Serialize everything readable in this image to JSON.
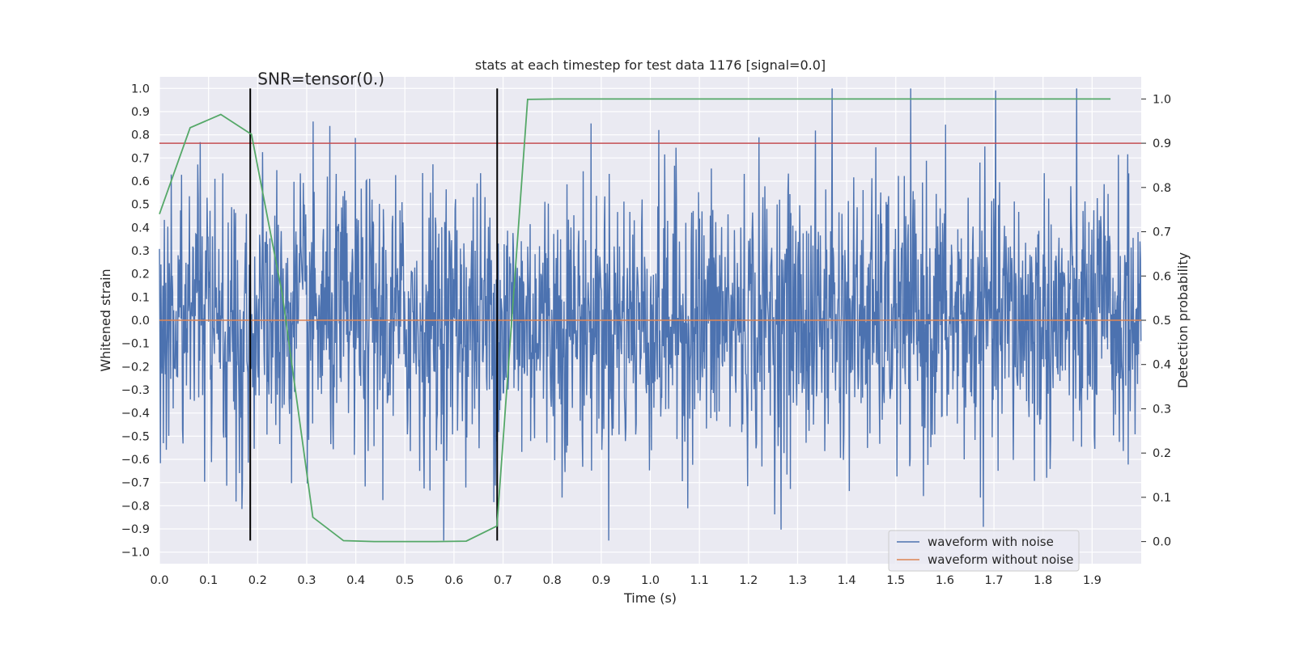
{
  "chart_data": {
    "type": "line",
    "title": "stats at each timestep for test data 1176 [signal=0.0]",
    "xlabel": "Time (s)",
    "ylabel": "Whitened strain",
    "y2label": "Detection probability",
    "xlim": [
      0.0,
      2.0
    ],
    "ylim": [
      -1.05,
      1.05
    ],
    "y2lim": [
      -0.05,
      1.05
    ],
    "xticks": [
      0.0,
      0.1,
      0.2,
      0.3,
      0.4,
      0.5,
      0.6,
      0.7,
      0.8,
      0.9,
      1.0,
      1.1,
      1.2,
      1.3,
      1.4,
      1.5,
      1.6,
      1.7,
      1.8,
      1.9
    ],
    "xtick_labels": [
      "0.0",
      "0.1",
      "0.2",
      "0.3",
      "0.4",
      "0.5",
      "0.6",
      "0.7",
      "0.8",
      "0.9",
      "1.0",
      "1.1",
      "1.2",
      "1.3",
      "1.4",
      "1.5",
      "1.6",
      "1.7",
      "1.8",
      "1.9"
    ],
    "yticks": [
      1.0,
      0.9,
      0.8,
      0.7,
      0.6,
      0.5,
      0.4,
      0.3,
      0.2,
      0.1,
      0.0,
      -0.1,
      -0.2,
      -0.3,
      -0.4,
      -0.5,
      -0.6,
      -0.7,
      -0.8,
      -0.9,
      -1.0
    ],
    "ytick_labels": [
      "1.0",
      "0.9",
      "0.8",
      "0.7",
      "0.6",
      "0.5",
      "0.4",
      "0.3",
      "0.2",
      "0.1",
      "0.0",
      "−0.1",
      "−0.2",
      "−0.3",
      "−0.4",
      "−0.5",
      "−0.6",
      "−0.7",
      "−0.8",
      "−0.9",
      "−1.0"
    ],
    "y2ticks": [
      1.0,
      0.9,
      0.8,
      0.7,
      0.6,
      0.5,
      0.4,
      0.3,
      0.2,
      0.1,
      0.0
    ],
    "y2tick_labels": [
      "1.0",
      "0.9",
      "0.8",
      "0.7",
      "0.6",
      "0.5",
      "0.4",
      "0.3",
      "0.2",
      "0.1",
      "0.0"
    ],
    "grid": true,
    "legend_position": "bottom-right",
    "series": [
      {
        "name": "waveform with noise",
        "axis": "left",
        "color": "#4c72b0",
        "noise": {
          "samples": 2000,
          "t_start": 0.0,
          "t_end": 1.9995,
          "amplitude_std": 0.3,
          "max": 1.0,
          "min": -0.95
        }
      },
      {
        "name": "waveform without noise",
        "axis": "left",
        "color": "#dd8452",
        "constant": 0.0
      },
      {
        "name": "detection probability",
        "axis": "right",
        "color": "#55a868",
        "x": [
          0.0,
          0.0625,
          0.125,
          0.1875,
          0.25,
          0.3125,
          0.375,
          0.4375,
          0.5,
          0.5625,
          0.625,
          0.6875,
          0.75,
          0.8125,
          0.875,
          0.9375,
          1.0,
          1.25,
          1.5,
          1.75,
          1.9375
        ],
        "values": [
          0.74,
          0.935,
          0.965,
          0.92,
          0.56,
          0.055,
          0.002,
          0.0,
          0.0,
          0.0,
          0.001,
          0.035,
          0.999,
          1.0,
          1.0,
          1.0,
          1.0,
          1.0,
          1.0,
          1.0,
          1.0
        ]
      }
    ],
    "threshold": {
      "axis": "right",
      "value": 0.9,
      "color": "#c44e52"
    },
    "vlines": [
      {
        "x": 0.185,
        "y_from": -0.95,
        "y_to": 1.0,
        "color": "#000000"
      },
      {
        "x": 0.688,
        "y_from": -0.95,
        "y_to": 1.0,
        "color": "#000000"
      }
    ],
    "annotation": {
      "text": "SNR=tensor(0.)",
      "x": 0.2,
      "y": 1.0
    }
  }
}
